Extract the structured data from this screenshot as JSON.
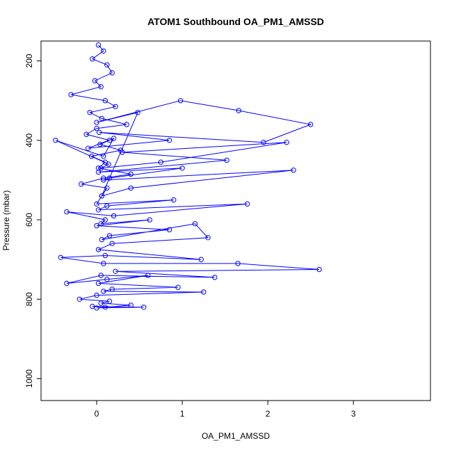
{
  "chart_data": {
    "type": "line",
    "title": "ATOM1 Southbound OA_PM1_AMSSD",
    "xlabel": "OA_PM1_AMSSD",
    "ylabel": "Pressure (mbar)",
    "xlim": [
      -0.65,
      3.9
    ],
    "ylim": [
      1055,
      150
    ],
    "y_inverted": true,
    "x_ticks": [
      0,
      1,
      2,
      3
    ],
    "y_ticks": [
      200,
      400,
      600,
      800,
      1000
    ],
    "grid": false,
    "legend": "none",
    "markers": "open-circle",
    "color": "#0000ff",
    "series": [
      {
        "x": [
          0.02,
          0.08,
          -0.05,
          0.12,
          0.18,
          -0.02,
          0.05,
          -0.3,
          0.1,
          0.22,
          -0.08,
          0.06,
          0.35,
          0.0,
          -0.12,
          0.15,
          0.04,
          0.28,
          -0.06,
          0.1,
          0.02,
          0.4,
          0.08,
          -0.18,
          0.12,
          0.06,
          0.48,
          0.0,
          0.98,
          1.66,
          2.5,
          1.95,
          0.03,
          0.85,
          -0.1,
          0.2,
          0.08,
          -0.48,
          0.14,
          0.05,
          0.75,
          2.22,
          0.3,
          1.52,
          0.02,
          1.0,
          0.15,
          0.08,
          2.3,
          0.4,
          0.06,
          0.0,
          0.9,
          0.12,
          0.02,
          1.76,
          0.2,
          -0.35,
          0.1,
          0.05,
          0.62,
          0.0,
          0.85,
          0.15,
          0.06,
          1.15,
          1.3,
          0.18,
          0.02,
          1.22,
          0.1,
          -0.42,
          0.08,
          1.65,
          2.6,
          0.22,
          1.38,
          0.05,
          -0.35,
          0.12,
          0.6,
          0.02,
          0.95,
          0.18,
          0.08,
          1.25,
          0.0,
          -0.2,
          0.15,
          0.05,
          0.4,
          0.1,
          -0.05,
          0.55,
          0.0
        ],
        "y": [
          160,
          175,
          195,
          210,
          230,
          250,
          265,
          285,
          300,
          315,
          330,
          345,
          360,
          370,
          385,
          400,
          410,
          425,
          440,
          455,
          470,
          485,
          495,
          510,
          520,
          540,
          330,
          355,
          300,
          325,
          360,
          405,
          380,
          400,
          420,
          395,
          440,
          400,
          460,
          470,
          455,
          405,
          430,
          450,
          480,
          470,
          495,
          500,
          475,
          520,
          540,
          560,
          550,
          565,
          575,
          560,
          590,
          580,
          600,
          610,
          600,
          615,
          625,
          640,
          650,
          610,
          645,
          660,
          675,
          700,
          690,
          695,
          710,
          710,
          725,
          730,
          745,
          740,
          760,
          750,
          740,
          760,
          770,
          775,
          780,
          782,
          790,
          800,
          805,
          810,
          815,
          820,
          818,
          820,
          822
        ]
      }
    ]
  }
}
